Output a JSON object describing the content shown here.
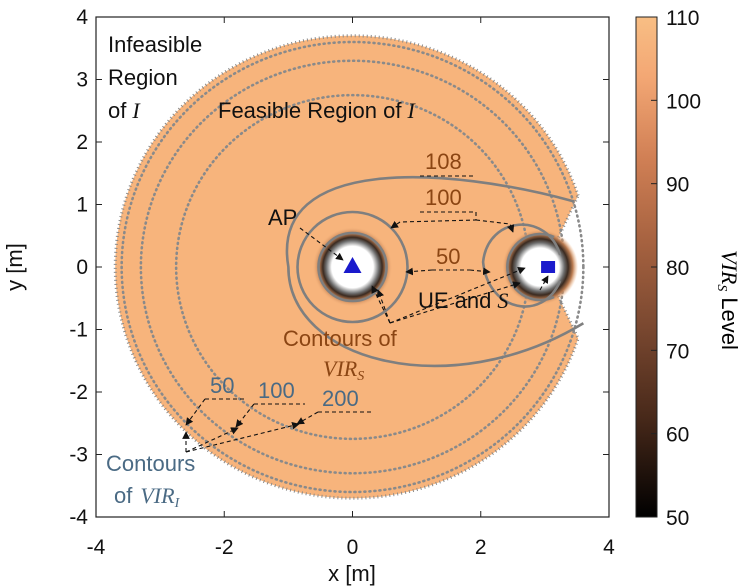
{
  "chart_data": {
    "type": "heatmap",
    "xlabel": "x [m]",
    "ylabel": "y [m]",
    "xlim": [
      -4,
      4
    ],
    "ylim": [
      -4,
      4
    ],
    "xticks": [
      "-4",
      "-2",
      "0",
      "2",
      "4"
    ],
    "yticks": [
      "4",
      "3",
      "2",
      "1",
      "0",
      "-1",
      "-2",
      "-3",
      "-4"
    ],
    "colorbar": {
      "label": "VIR",
      "label_sub": "S",
      "label_suffix": "Level",
      "range": [
        50,
        110
      ],
      "ticks": [
        "110",
        "100",
        "90",
        "80",
        "70",
        "60",
        "50"
      ]
    },
    "feasible_region": {
      "shape": "disc with notch",
      "center": [
        0,
        0
      ],
      "radius": 3.7,
      "notch_at": [
        3.0,
        0.0
      ]
    },
    "vir_i_contours": [
      {
        "level": 50,
        "radius": 3.6
      },
      {
        "level": 100,
        "radius": 3.3
      },
      {
        "level": 200,
        "radius": 2.75
      }
    ],
    "vir_s_contours": [
      {
        "level": 50,
        "label": "50"
      },
      {
        "level": 100,
        "label": "100"
      },
      {
        "level": 108,
        "label": "108"
      }
    ],
    "points": {
      "ap": {
        "x": 0.0,
        "y": 0.0,
        "label": "AP"
      },
      "ue": {
        "x": 3.05,
        "y": 0.0,
        "label": "UE and"
      }
    },
    "annotations": {
      "infeasible": [
        "Infeasible",
        "Region",
        "of"
      ],
      "infeasible_symbol": "I",
      "feasible": "Feasible Region of",
      "feasible_symbol": "I",
      "contours_s_line1": "Contours of",
      "contours_s_line2": "VIR",
      "contours_s_sub": "S",
      "contours_i_line1": "Contours",
      "contours_i_line2": "of",
      "contours_i_vir": "VIR",
      "contours_i_sub": "I",
      "ue_symbol": "S",
      "vir_i_labels": [
        "50",
        "100",
        "200"
      ],
      "vir_s_labels": [
        "108",
        "100",
        "50"
      ]
    },
    "colors": {
      "feasible": "#F7B47C",
      "contour": "#7f7f7f",
      "dotted": "#8a8a8a",
      "marker": "#1a1acc"
    }
  }
}
